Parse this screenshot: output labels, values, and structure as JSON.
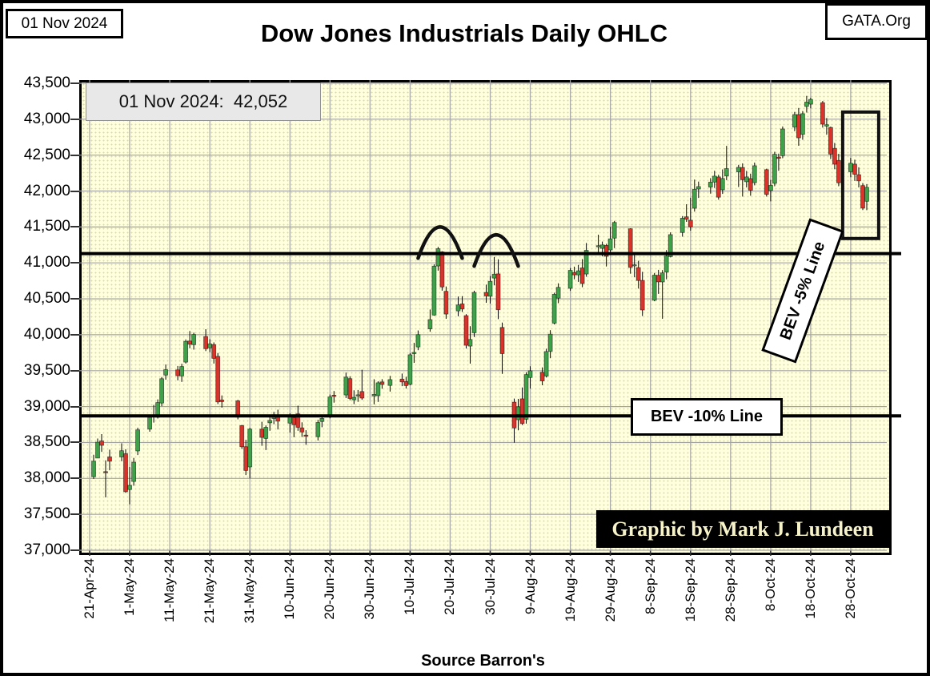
{
  "frame": {
    "date_label": "01 Nov 2024",
    "site_label": "GATA.Org"
  },
  "title": "Dow Jones Industrials Daily OHLC",
  "callout": {
    "text": "01 Nov 2024:  42,052"
  },
  "credit": "Graphic by Mark J. Lundeen",
  "source": "Source Barron's",
  "colors": {
    "up": "#3FA24A",
    "down": "#D9342B",
    "wick": "#000000",
    "grid": "#A3A3A3",
    "plot_bg": "#FFFFDE",
    "level_line": "#000000",
    "annotation": "#111111",
    "callout_bg": "#E8E8E8",
    "credit_bg": "#000000",
    "credit_text": "#F7F3C9"
  },
  "chart_data": {
    "type": "ohlc-candlestick",
    "title": "Dow Jones Industrials Daily OHLC",
    "ylabel": "",
    "xlabel": "",
    "ylim": [
      37000,
      43500
    ],
    "ytick_step": 500,
    "grid": true,
    "y_ticks": [
      "43,500",
      "43,000",
      "42,500",
      "42,000",
      "41,500",
      "41,000",
      "40,500",
      "40,000",
      "39,500",
      "39,000",
      "38,500",
      "38,000",
      "37,500",
      "37,000"
    ],
    "x_ticks": [
      "21-Apr-24",
      "1-May-24",
      "11-May-24",
      "21-May-24",
      "31-May-24",
      "10-Jun-24",
      "20-Jun-24",
      "30-Jun-24",
      "10-Jul-24",
      "20-Jul-24",
      "30-Jul-24",
      "9-Aug-24",
      "19-Aug-24",
      "29-Aug-24",
      "8-Sep-24",
      "18-Sep-24",
      "28-Sep-24",
      "8-Oct-24",
      "18-Oct-24",
      "28-Oct-24"
    ],
    "x_start_date": "2024-04-21",
    "x_tick_interval_days": 10,
    "levels": [
      {
        "name": "BEV -5% Line",
        "value": 41130
      },
      {
        "name": "BEV -10% Line",
        "value": 38870
      }
    ],
    "annotations": {
      "double_top_arcs": [
        {
          "from": "2024-07-12",
          "to": "2024-07-23",
          "apex_value": 41500
        },
        {
          "from": "2024-07-26",
          "to": "2024-08-06",
          "apex_value": 41390
        }
      ],
      "highlight_box": {
        "from": "2024-10-26",
        "to": "2024-11-04",
        "top": 43100,
        "bottom": 41340
      }
    },
    "series": [
      [
        "2024-04-22",
        38025,
        38329,
        37993,
        38240
      ],
      [
        "2024-04-23",
        38283,
        38555,
        38283,
        38504
      ],
      [
        "2024-04-24",
        38521,
        38617,
        38370,
        38461
      ],
      [
        "2024-04-25",
        38095,
        38251,
        37736,
        38086
      ],
      [
        "2024-04-26",
        38299,
        38400,
        38114,
        38240
      ],
      [
        "2024-04-29",
        38299,
        38488,
        38239,
        38386
      ],
      [
        "2024-04-30",
        38344,
        38406,
        37801,
        37816
      ],
      [
        "2024-05-01",
        37845,
        38159,
        37640,
        37903
      ],
      [
        "2024-05-02",
        37957,
        38285,
        37899,
        38226
      ],
      [
        "2024-05-03",
        38383,
        38706,
        38326,
        38676
      ],
      [
        "2024-05-06",
        38686,
        38874,
        38650,
        38852
      ],
      [
        "2024-05-07",
        38880,
        39022,
        38777,
        38884
      ],
      [
        "2024-05-08",
        38852,
        39101,
        38834,
        39056
      ],
      [
        "2024-05-09",
        39049,
        39412,
        39005,
        39388
      ],
      [
        "2024-05-10",
        39438,
        39585,
        39375,
        39513
      ],
      [
        "2024-05-13",
        39511,
        39565,
        39365,
        39431
      ],
      [
        "2024-05-14",
        39428,
        39595,
        39344,
        39558
      ],
      [
        "2024-05-15",
        39619,
        39935,
        39600,
        39908
      ],
      [
        "2024-05-16",
        39912,
        40051,
        39812,
        39869
      ],
      [
        "2024-05-17",
        39862,
        40028,
        39793,
        40004
      ],
      [
        "2024-05-20",
        39975,
        40077,
        39773,
        39807
      ],
      [
        "2024-05-21",
        39817,
        39938,
        39757,
        39873
      ],
      [
        "2024-05-22",
        39862,
        39893,
        39599,
        39671
      ],
      [
        "2024-05-23",
        39699,
        39746,
        39035,
        39065
      ],
      [
        "2024-05-24",
        39092,
        39155,
        38986,
        39070
      ],
      [
        "2024-05-28",
        39079,
        39094,
        38823,
        38853
      ],
      [
        "2024-05-29",
        38735,
        38745,
        38410,
        38441
      ],
      [
        "2024-05-30",
        38442,
        38537,
        38047,
        38111
      ],
      [
        "2024-05-31",
        38160,
        38704,
        38000,
        38686
      ],
      [
        "2024-06-03",
        38686,
        38788,
        38454,
        38571
      ],
      [
        "2024-06-04",
        38556,
        38737,
        38395,
        38711
      ],
      [
        "2024-06-05",
        38773,
        38862,
        38663,
        38807
      ],
      [
        "2024-06-06",
        38834,
        38927,
        38755,
        38886
      ],
      [
        "2024-06-07",
        38869,
        38957,
        38681,
        38798
      ],
      [
        "2024-06-10",
        38770,
        38905,
        38638,
        38868
      ],
      [
        "2024-06-11",
        38845,
        38891,
        38573,
        38747
      ],
      [
        "2024-06-12",
        38899,
        39012,
        38664,
        38712
      ],
      [
        "2024-06-13",
        38704,
        38780,
        38576,
        38647
      ],
      [
        "2024-06-14",
        38603,
        38671,
        38467,
        38589
      ],
      [
        "2024-06-17",
        38581,
        38815,
        38528,
        38778
      ],
      [
        "2024-06-18",
        38791,
        38871,
        38712,
        38835
      ],
      [
        "2024-06-20",
        38867,
        39167,
        38836,
        39134
      ],
      [
        "2024-06-21",
        39158,
        39216,
        39055,
        39150
      ],
      [
        "2024-06-24",
        39162,
        39474,
        39120,
        39411
      ],
      [
        "2024-06-25",
        39389,
        39422,
        39088,
        39112
      ],
      [
        "2024-06-26",
        39095,
        39227,
        39034,
        39128
      ],
      [
        "2024-06-27",
        39148,
        39231,
        39066,
        39164
      ],
      [
        "2024-06-28",
        39210,
        39513,
        39094,
        39119
      ],
      [
        "2024-07-01",
        39149,
        39380,
        39030,
        39170
      ],
      [
        "2024-07-02",
        39152,
        39353,
        39065,
        39331
      ],
      [
        "2024-07-03",
        39344,
        39382,
        39248,
        39308
      ],
      [
        "2024-07-05",
        39295,
        39427,
        39209,
        39376
      ],
      [
        "2024-07-08",
        39383,
        39459,
        39285,
        39344
      ],
      [
        "2024-07-09",
        39348,
        39415,
        39251,
        39292
      ],
      [
        "2024-07-10",
        39310,
        39744,
        39296,
        39721
      ],
      [
        "2024-07-11",
        39737,
        39887,
        39609,
        39754
      ],
      [
        "2024-07-12",
        39829,
        40059,
        39785,
        40001
      ],
      [
        "2024-07-15",
        40082,
        40351,
        40041,
        40211
      ],
      [
        "2024-07-16",
        40274,
        40980,
        40265,
        40955
      ],
      [
        "2024-07-17",
        40957,
        41222,
        40892,
        41198
      ],
      [
        "2024-07-18",
        41154,
        41162,
        40613,
        40665
      ],
      [
        "2024-07-19",
        40605,
        40671,
        40222,
        40288
      ],
      [
        "2024-07-22",
        40331,
        40532,
        40257,
        40415
      ],
      [
        "2024-07-23",
        40429,
        40538,
        40317,
        40358
      ],
      [
        "2024-07-24",
        40266,
        40286,
        39808,
        39854
      ],
      [
        "2024-07-25",
        39843,
        40120,
        39598,
        39935
      ],
      [
        "2024-07-26",
        40028,
        40612,
        39968,
        40589
      ],
      [
        "2024-07-29",
        40589,
        40697,
        40445,
        40540
      ],
      [
        "2024-07-30",
        40537,
        40818,
        40434,
        40743
      ],
      [
        "2024-07-31",
        40788,
        41083,
        40688,
        40843
      ],
      [
        "2024-08-01",
        40848,
        41050,
        40218,
        40348
      ],
      [
        "2024-08-02",
        40102,
        40169,
        39456,
        39737
      ],
      [
        "2024-08-05",
        39062,
        39112,
        38499,
        38703
      ],
      [
        "2024-08-06",
        38816,
        39107,
        38669,
        38997
      ],
      [
        "2024-08-07",
        39108,
        39265,
        38744,
        38763
      ],
      [
        "2024-08-08",
        38823,
        39478,
        38763,
        39446
      ],
      [
        "2024-08-09",
        39404,
        39561,
        39251,
        39498
      ],
      [
        "2024-08-12",
        39479,
        39545,
        39297,
        39357
      ],
      [
        "2024-08-13",
        39425,
        39805,
        39405,
        39766
      ],
      [
        "2024-08-14",
        39768,
        40064,
        39674,
        40008
      ],
      [
        "2024-08-15",
        40161,
        40584,
        40143,
        40563
      ],
      [
        "2024-08-16",
        40510,
        40716,
        40439,
        40660
      ],
      [
        "2024-08-19",
        40646,
        40929,
        40610,
        40897
      ],
      [
        "2024-08-20",
        40867,
        40948,
        40772,
        40834
      ],
      [
        "2024-08-21",
        40833,
        40972,
        40736,
        40890
      ],
      [
        "2024-08-22",
        40930,
        41053,
        40661,
        40713
      ],
      [
        "2024-08-23",
        40845,
        41277,
        40807,
        41175
      ],
      [
        "2024-08-26",
        41223,
        41393,
        41140,
        41240
      ],
      [
        "2024-08-27",
        41202,
        41297,
        41091,
        41250
      ],
      [
        "2024-08-28",
        41243,
        41265,
        40950,
        41091
      ],
      [
        "2024-08-29",
        41180,
        41502,
        41115,
        41335
      ],
      [
        "2024-08-30",
        41345,
        41585,
        41206,
        41563
      ],
      [
        "2024-09-03",
        41475,
        41482,
        40850,
        40937
      ],
      [
        "2024-09-04",
        40958,
        41119,
        40800,
        40974
      ],
      [
        "2024-09-05",
        40935,
        41029,
        40642,
        40756
      ],
      [
        "2024-09-06",
        40756,
        40875,
        40260,
        40345
      ],
      [
        "2024-09-09",
        40481,
        40860,
        40466,
        40830
      ],
      [
        "2024-09-10",
        40828,
        40903,
        40569,
        40737
      ],
      [
        "2024-09-11",
        40735,
        40900,
        40222,
        40861
      ],
      [
        "2024-09-12",
        40872,
        41179,
        40772,
        41097
      ],
      [
        "2024-09-13",
        41087,
        41425,
        41076,
        41394
      ],
      [
        "2024-09-16",
        41422,
        41652,
        41365,
        41622
      ],
      [
        "2024-09-17",
        41641,
        41817,
        41571,
        41606
      ],
      [
        "2024-09-18",
        41595,
        41907,
        41447,
        41503
      ],
      [
        "2024-09-19",
        41761,
        42160,
        41714,
        42025
      ],
      [
        "2024-09-20",
        42028,
        42132,
        41904,
        42063
      ],
      [
        "2024-09-23",
        42055,
        42180,
        41964,
        42124
      ],
      [
        "2024-09-24",
        42126,
        42283,
        42043,
        42208
      ],
      [
        "2024-09-25",
        42197,
        42227,
        41880,
        41915
      ],
      [
        "2024-09-26",
        42018,
        42301,
        41960,
        42175
      ],
      [
        "2024-09-27",
        42210,
        42629,
        42152,
        42313
      ],
      [
        "2024-09-30",
        42266,
        42365,
        42056,
        42330
      ],
      [
        "2024-10-01",
        42328,
        42385,
        41924,
        42157
      ],
      [
        "2024-10-02",
        42130,
        42280,
        42051,
        42197
      ],
      [
        "2024-10-03",
        42174,
        42242,
        41935,
        42011
      ],
      [
        "2024-10-04",
        42117,
        42396,
        42080,
        42353
      ],
      [
        "2024-10-07",
        42298,
        42312,
        41924,
        41954
      ],
      [
        "2024-10-08",
        42006,
        42155,
        41857,
        42080
      ],
      [
        "2024-10-09",
        42107,
        42547,
        42067,
        42512
      ],
      [
        "2024-10-10",
        42472,
        42521,
        42282,
        42454
      ],
      [
        "2024-10-11",
        42492,
        42899,
        42457,
        42864
      ],
      [
        "2024-10-14",
        42890,
        43102,
        42833,
        43065
      ],
      [
        "2024-10-15",
        43065,
        43157,
        42630,
        42740
      ],
      [
        "2024-10-16",
        42789,
        43113,
        42714,
        43078
      ],
      [
        "2024-10-17",
        43178,
        43325,
        43093,
        43239
      ],
      [
        "2024-10-18",
        43210,
        43299,
        43152,
        43276
      ],
      [
        "2024-10-21",
        43230,
        43254,
        42883,
        42931
      ],
      [
        "2024-10-22",
        42905,
        43016,
        42784,
        42924
      ],
      [
        "2024-10-23",
        42886,
        42897,
        42445,
        42515
      ],
      [
        "2024-10-24",
        42595,
        42669,
        42304,
        42374
      ],
      [
        "2024-10-25",
        42426,
        42518,
        42067,
        42114
      ],
      [
        "2024-10-28",
        42268,
        42462,
        42192,
        42387
      ],
      [
        "2024-10-29",
        42375,
        42436,
        42141,
        42233
      ],
      [
        "2024-10-30",
        42228,
        42330,
        42051,
        42142
      ],
      [
        "2024-10-31",
        42076,
        42111,
        41736,
        41763
      ],
      [
        "2024-11-01",
        41858,
        42096,
        41734,
        42052
      ]
    ]
  }
}
